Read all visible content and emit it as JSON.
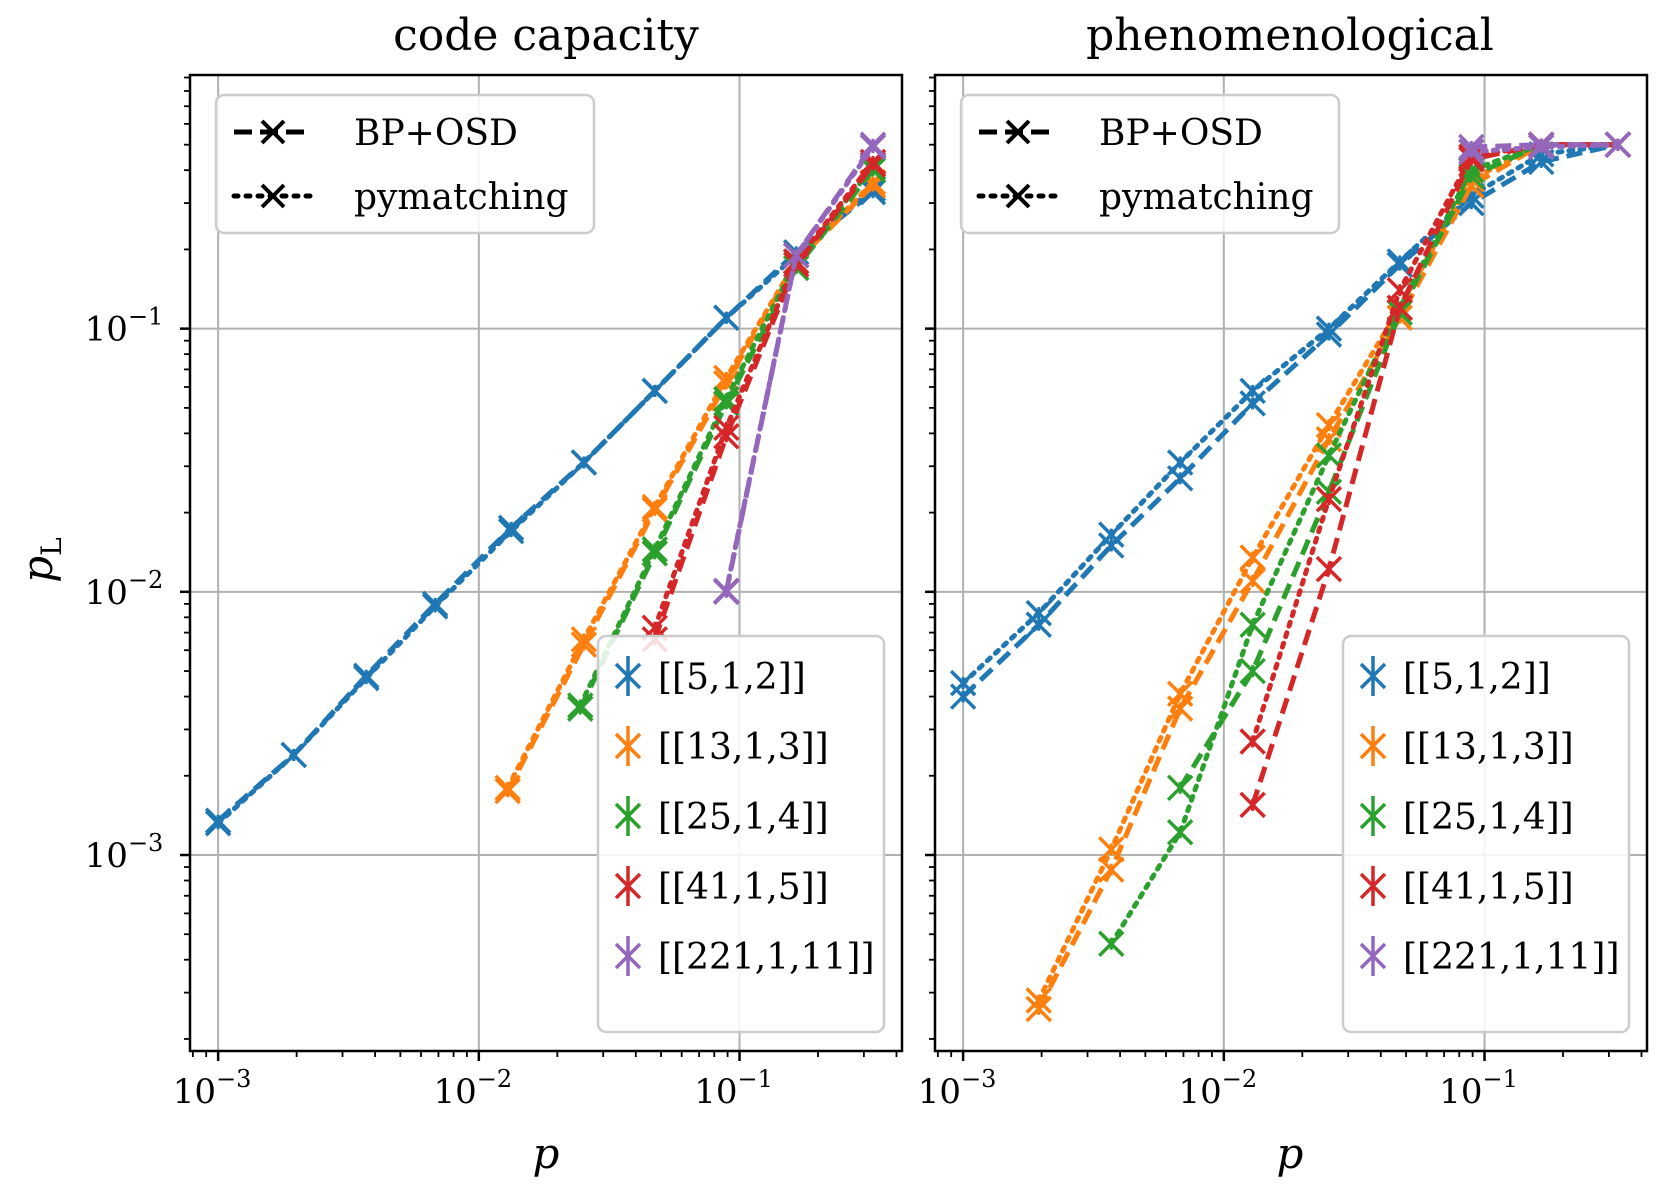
{
  "chart_data": [
    {
      "type": "line",
      "title": "code capacity",
      "xlabel": "p",
      "ylabel": "pL",
      "xscale": "log",
      "yscale": "log",
      "xlim": [
        0.00078,
        0.42
      ],
      "ylim": [
        0.00018,
        0.92
      ],
      "xticks": [
        {
          "base": "10",
          "exp": "−3",
          "value": 0.001
        },
        {
          "base": "10",
          "exp": "−2",
          "value": 0.01
        },
        {
          "base": "10",
          "exp": "−1",
          "value": 0.1
        }
      ],
      "yticks": [
        {
          "base": "10",
          "exp": "−3",
          "value": 0.001
        },
        {
          "base": "10",
          "exp": "−2",
          "value": 0.01
        },
        {
          "base": "10",
          "exp": "−1",
          "value": 0.1
        }
      ],
      "grid": true,
      "style_legend": {
        "location": "top-left",
        "entries": [
          {
            "label": "BP+OSD",
            "dash": "dashed"
          },
          {
            "label": "pymatching",
            "dash": "dotted"
          }
        ]
      },
      "code_legend": {
        "location": "bottom-right"
      },
      "series": [
        {
          "name": "[[5,1,2]]",
          "color": "#1f77b4",
          "bposd": {
            "x": [
              0.001,
              0.00195,
              0.0037,
              0.0068,
              0.0133,
              0.0253,
              0.0473,
              0.089,
              0.165,
              0.325
            ],
            "y": [
              0.00135,
              0.0024,
              0.0048,
              0.009,
              0.0175,
              0.031,
              0.058,
              0.11,
              0.195,
              0.33
            ]
          },
          "pymatching": {
            "x": [
              0.001,
              0.00195,
              0.0037,
              0.0068,
              0.0133,
              0.0253,
              0.0473,
              0.089,
              0.165,
              0.325
            ],
            "y": [
              0.00132,
              0.0024,
              0.0047,
              0.0088,
              0.017,
              0.031,
              0.058,
              0.11,
              0.19,
              0.34
            ]
          }
        },
        {
          "name": "[[13,1,3]]",
          "color": "#ff7f0e",
          "bposd": {
            "x": [
              0.0129,
              0.0253,
              0.0473,
              0.089,
              0.165,
              0.325
            ],
            "y": [
              0.00175,
              0.0063,
              0.0205,
              0.062,
              0.18,
              0.35
            ]
          },
          "pymatching": {
            "x": [
              0.0129,
              0.0253,
              0.0473,
              0.089,
              0.165,
              0.325
            ],
            "y": [
              0.0018,
              0.0066,
              0.021,
              0.065,
              0.18,
              0.36
            ]
          }
        },
        {
          "name": "[[25,1,4]]",
          "color": "#2ca02c",
          "bposd": {
            "x": [
              0.0245,
              0.0473,
              0.089,
              0.165,
              0.325
            ],
            "y": [
              0.0036,
              0.014,
              0.052,
              0.17,
              0.4
            ]
          },
          "pymatching": {
            "x": [
              0.0245,
              0.0473,
              0.089,
              0.165,
              0.325
            ],
            "y": [
              0.0037,
              0.0145,
              0.054,
              0.18,
              0.41
            ]
          }
        },
        {
          "name": "[[41,1,5]]",
          "color": "#d62728",
          "bposd": {
            "x": [
              0.0473,
              0.089,
              0.165,
              0.325
            ],
            "y": [
              0.0066,
              0.039,
              0.175,
              0.42
            ]
          },
          "pymatching": {
            "x": [
              0.0473,
              0.089,
              0.165,
              0.325
            ],
            "y": [
              0.0073,
              0.042,
              0.18,
              0.43
            ]
          }
        },
        {
          "name": "[[221,1,11]]",
          "color": "#9467bd",
          "bposd": {
            "x": [
              0.089,
              0.165,
              0.325
            ],
            "y": [
              0.01,
              0.19,
              0.5
            ]
          },
          "pymatching": {
            "x": [
              0.089,
              0.165,
              0.325
            ],
            "y": [
              0.0101,
              0.19,
              0.49
            ]
          }
        }
      ]
    },
    {
      "type": "line",
      "title": "phenomenological",
      "xlabel": "p",
      "ylabel": "",
      "xscale": "log",
      "yscale": "log",
      "xlim": [
        0.00078,
        0.42
      ],
      "ylim": [
        0.00018,
        0.92
      ],
      "xticks": [
        {
          "base": "10",
          "exp": "−3",
          "value": 0.001
        },
        {
          "base": "10",
          "exp": "−2",
          "value": 0.01
        },
        {
          "base": "10",
          "exp": "−1",
          "value": 0.1
        }
      ],
      "yticks": [],
      "grid": true,
      "style_legend": {
        "location": "top-left",
        "entries": [
          {
            "label": "BP+OSD",
            "dash": "dashed"
          },
          {
            "label": "pymatching",
            "dash": "dotted"
          }
        ]
      },
      "code_legend": {
        "location": "bottom-right"
      },
      "series": [
        {
          "name": "[[5,1,2]]",
          "color": "#1f77b4",
          "bposd": {
            "x": [
              0.001,
              0.00195,
              0.0037,
              0.0068,
              0.0129,
              0.0253,
              0.0473,
              0.089,
              0.165,
              0.325
            ],
            "y": [
              0.004,
              0.0075,
              0.015,
              0.027,
              0.052,
              0.095,
              0.175,
              0.3,
              0.43,
              0.5
            ]
          },
          "pymatching": {
            "x": [
              0.001,
              0.00195,
              0.0037,
              0.0068,
              0.0129,
              0.0253,
              0.0473,
              0.089,
              0.165,
              0.325
            ],
            "y": [
              0.0045,
              0.0083,
              0.0165,
              0.031,
              0.058,
              0.1,
              0.18,
              0.32,
              0.46,
              0.5
            ]
          }
        },
        {
          "name": "[[13,1,3]]",
          "color": "#ff7f0e",
          "bposd": {
            "x": [
              0.00195,
              0.0037,
              0.0068,
              0.0129,
              0.0253,
              0.0473,
              0.089,
              0.165,
              0.325
            ],
            "y": [
              0.00026,
              0.00088,
              0.0036,
              0.011,
              0.038,
              0.11,
              0.35,
              0.5,
              0.5
            ]
          },
          "pymatching": {
            "x": [
              0.00195,
              0.0037,
              0.0068,
              0.0129,
              0.0253,
              0.0473,
              0.089,
              0.165,
              0.325
            ],
            "y": [
              0.00028,
              0.00105,
              0.0041,
              0.0135,
              0.043,
              0.12,
              0.37,
              0.5,
              0.5
            ]
          }
        },
        {
          "name": "[[25,1,4]]",
          "color": "#2ca02c",
          "bposd": {
            "x": [
              0.0068,
              0.0129,
              0.0253,
              0.0473,
              0.089,
              0.165,
              0.325
            ],
            "y": [
              0.0018,
              0.005,
              0.024,
              0.115,
              0.38,
              0.5,
              0.5
            ]
          },
          "pymatching": {
            "x": [
              0.0037,
              0.0068,
              0.0129,
              0.0253,
              0.0473,
              0.089,
              0.165,
              0.325
            ],
            "y": [
              0.00046,
              0.00122,
              0.0075,
              0.033,
              0.12,
              0.4,
              0.5,
              0.5
            ]
          }
        },
        {
          "name": "[[41,1,5]]",
          "color": "#d62728",
          "bposd": {
            "x": [
              0.0129,
              0.0253,
              0.0473,
              0.089,
              0.165,
              0.325
            ],
            "y": [
              0.00155,
              0.0122,
              0.12,
              0.44,
              0.5,
              0.5
            ]
          },
          "pymatching": {
            "x": [
              0.0129,
              0.0253,
              0.0473,
              0.089,
              0.165,
              0.325
            ],
            "y": [
              0.0027,
              0.0225,
              0.14,
              0.45,
              0.5,
              0.5
            ]
          }
        },
        {
          "name": "[[221,1,11]]",
          "color": "#9467bd",
          "bposd": {
            "x": [
              0.089,
              0.165,
              0.325
            ],
            "y": [
              0.49,
              0.5,
              0.5
            ]
          },
          "pymatching": {
            "x": [
              0.089,
              0.165,
              0.325
            ],
            "y": [
              0.47,
              0.49,
              0.5
            ]
          }
        }
      ]
    }
  ]
}
